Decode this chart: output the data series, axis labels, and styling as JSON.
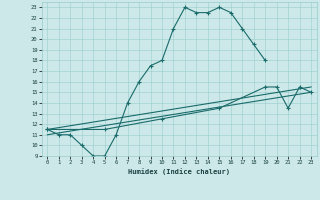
{
  "background_color": "#cce8e8",
  "grid_color": "#99cccc",
  "line_color": "#1a6b6b",
  "xlabel": "Humidex (Indice chaleur)",
  "xlim": [
    -0.5,
    23.5
  ],
  "ylim": [
    9,
    23.5
  ],
  "xticks": [
    0,
    1,
    2,
    3,
    4,
    5,
    6,
    7,
    8,
    9,
    10,
    11,
    12,
    13,
    14,
    15,
    16,
    17,
    18,
    19,
    20,
    21,
    22,
    23
  ],
  "yticks": [
    9,
    10,
    11,
    12,
    13,
    14,
    15,
    16,
    17,
    18,
    19,
    20,
    21,
    22,
    23
  ],
  "curve1_x": [
    0,
    1,
    2,
    3,
    4,
    5,
    6,
    7,
    8,
    9,
    10,
    11,
    12,
    13,
    14,
    15,
    16,
    17,
    18,
    19
  ],
  "curve1_y": [
    11.5,
    11.0,
    11.0,
    10.0,
    9.0,
    9.0,
    11.0,
    14.0,
    16.0,
    17.5,
    18.0,
    21.0,
    23.0,
    22.5,
    22.5,
    23.0,
    22.5,
    21.0,
    19.5,
    18.0
  ],
  "curve2_x": [
    0,
    5,
    10,
    15,
    19,
    20,
    21,
    22,
    23
  ],
  "curve2_y": [
    11.5,
    11.5,
    12.5,
    13.5,
    15.5,
    15.5,
    13.5,
    15.5,
    15.0
  ],
  "line3_x": [
    0,
    23
  ],
  "line3_y": [
    11.0,
    15.0
  ],
  "line4_x": [
    0,
    23
  ],
  "line4_y": [
    11.5,
    15.5
  ]
}
